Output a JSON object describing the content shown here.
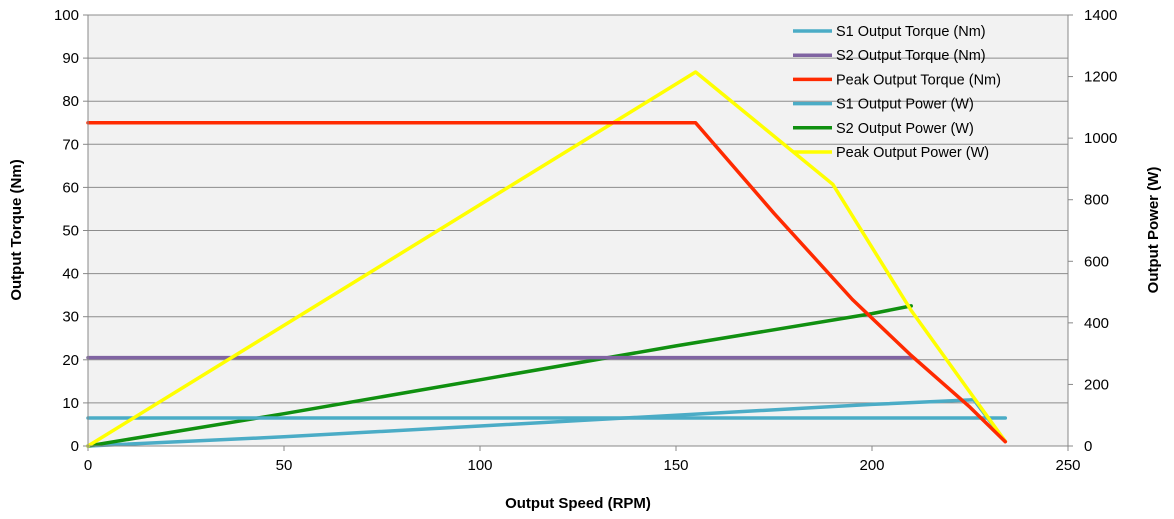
{
  "chart_data": {
    "type": "line",
    "xlabel": "Output Speed (RPM)",
    "ylabel": "Output Torque (Nm)",
    "y2label": "Output Power (W)",
    "xlim": [
      0,
      250
    ],
    "ylim": [
      0,
      100
    ],
    "y2lim": [
      0,
      1400
    ],
    "x_ticks": [
      0,
      50,
      100,
      150,
      200,
      250
    ],
    "y_ticks": [
      0,
      10,
      20,
      30,
      40,
      50,
      60,
      70,
      80,
      90,
      100
    ],
    "y2_ticks": [
      0,
      200,
      400,
      600,
      800,
      1000,
      1200,
      1400
    ],
    "grid": "horizontal",
    "legend_position": "top-right",
    "series": [
      {
        "name": "S1 Output Torque (Nm)",
        "axis": "left",
        "color": "#4bacc6",
        "x": [
          0,
          234
        ],
        "values": [
          6.5,
          6.5
        ]
      },
      {
        "name": "S2 Output Torque (Nm)",
        "axis": "left",
        "color": "#8064a2",
        "x": [
          0,
          210
        ],
        "values": [
          20.5,
          20.5
        ]
      },
      {
        "name": "Peak Output Torque (Nm)",
        "axis": "left",
        "color": "#ff2a00",
        "x": [
          0,
          155,
          175,
          195,
          210,
          225,
          234
        ],
        "values": [
          75,
          75,
          54,
          34,
          21,
          9,
          1
        ]
      },
      {
        "name": "S1 Output Power (W)",
        "axis": "right",
        "color": "#4bacc6",
        "x": [
          0,
          50,
          100,
          150,
          200,
          226,
          234
        ],
        "values": [
          0,
          30,
          65,
          100,
          135,
          150,
          15
        ]
      },
      {
        "name": "S2 Output Power (W)",
        "axis": "right",
        "color": "#109010",
        "x": [
          0,
          50,
          100,
          150,
          200,
          210
        ],
        "values": [
          0,
          105,
          215,
          325,
          430,
          455
        ]
      },
      {
        "name": "Peak Output Power (W)",
        "axis": "right",
        "color": "#ffff00",
        "x": [
          0,
          155,
          190,
          210,
          234
        ],
        "values": [
          0,
          1215,
          850,
          440,
          15
        ]
      }
    ]
  }
}
